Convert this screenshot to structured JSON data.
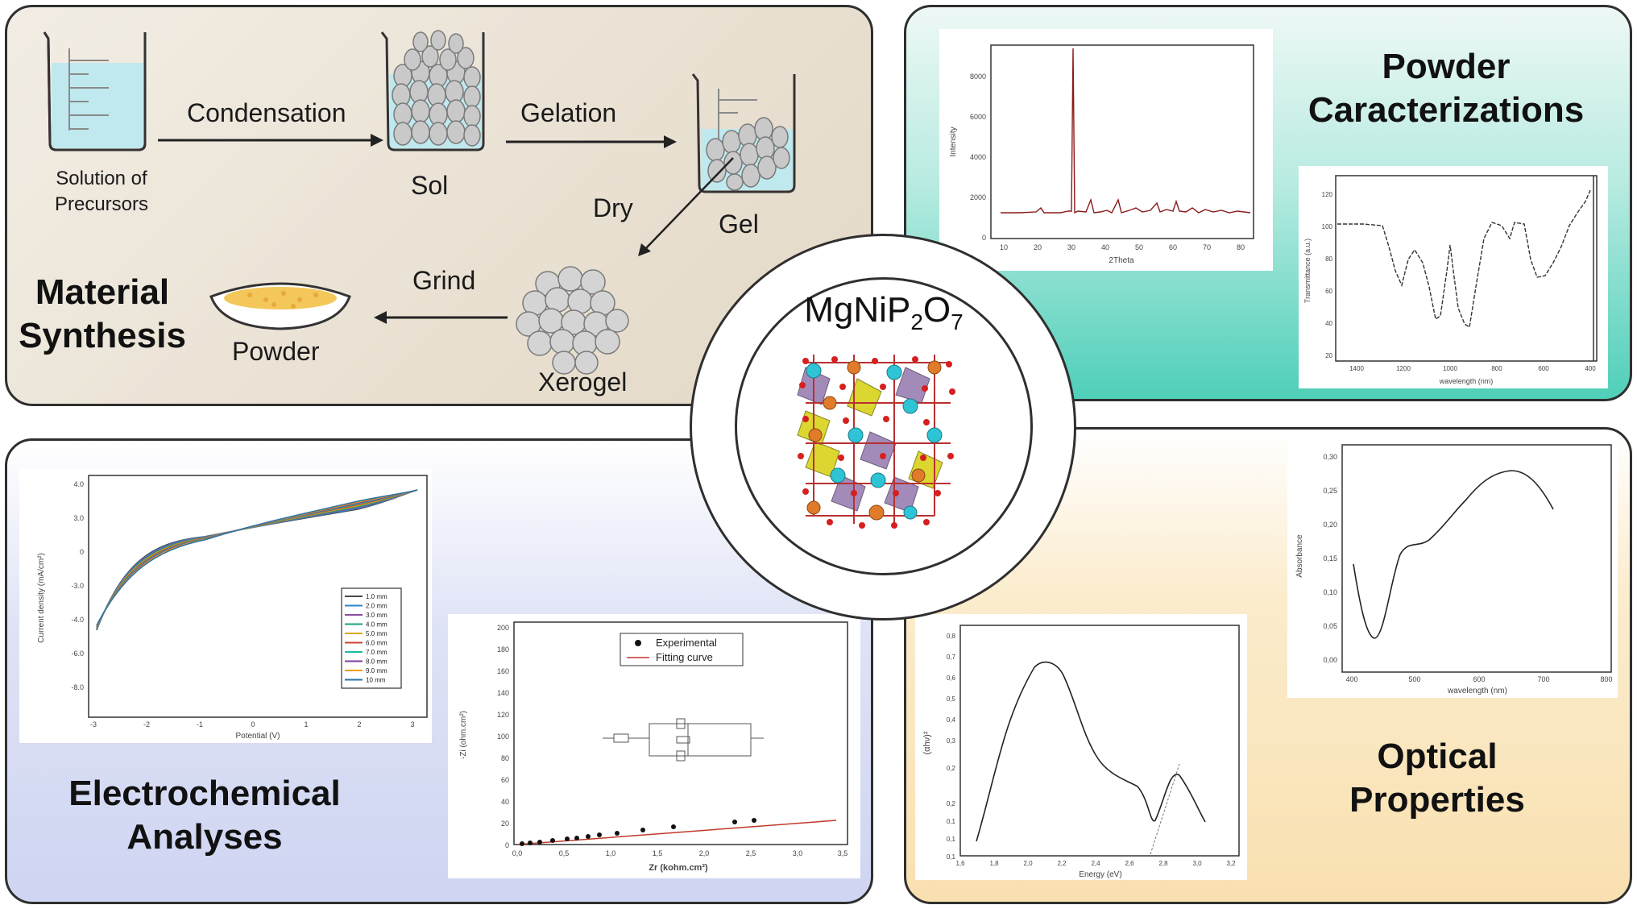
{
  "synthesis": {
    "heading_line1": "Material",
    "heading_line2": "Synthesis",
    "step1": "Condensation",
    "step2": "Gelation",
    "step3": "Dry",
    "step4": "Grind",
    "solution_line1": "Solution of",
    "solution_line2": "Precursors",
    "sol": "Sol",
    "gel": "Gel",
    "xerogel": "Xerogel",
    "powder": "Powder"
  },
  "powder": {
    "heading_line1": "Powder",
    "heading_line2": "Caracterizations",
    "xrd_ylabel": "Intensity",
    "xrd_xlabel": "2Theta",
    "xrd_yticks": [
      "0",
      "2000",
      "4000",
      "6000",
      "8000"
    ],
    "xrd_xticks": [
      "10",
      "20",
      "30",
      "40",
      "50",
      "60",
      "70",
      "80"
    ],
    "ftir_ylabel": "Transmittance (a.u.)",
    "ftir_xlabel": "wavelength (nm)",
    "ftir_xticks": [
      "1400",
      "1200",
      "1000",
      "800",
      "600",
      "400"
    ],
    "ftir_yticks": [
      "20",
      "40",
      "60",
      "80",
      "100",
      "120"
    ]
  },
  "center": {
    "formula_main": "MgNiP",
    "sub1": "2",
    "formula_o": "O",
    "sub2": "7"
  },
  "electro": {
    "heading_line1": "Electrochemical",
    "heading_line2": "Analyses",
    "cv_ylabel": "Current density (mA/cm²)",
    "cv_xlabel": "Potential (V)",
    "cv_yticks": [
      "4.0",
      "3.0",
      "0",
      "-3.0",
      "-4.0",
      "-6.0",
      "-8.0"
    ],
    "cv_xticks": [
      "-3",
      "-2",
      "-1",
      "0",
      "1",
      "2",
      "3"
    ],
    "cv_legend": [
      "1.0 mm",
      "2.0 mm",
      "3.0 mm",
      "4.0 mm",
      "5.0 mm",
      "6.0 mm",
      "7.0 mm",
      "8.0 mm",
      "9.0 mm",
      "10 mm"
    ],
    "eis_ylabel": "-Zi (ohm.cm²)",
    "eis_xlabel": "Zr (kohm.cm²)",
    "eis_yticks": [
      "0",
      "20",
      "40",
      "60",
      "80",
      "100",
      "120",
      "140",
      "160",
      "180",
      "200"
    ],
    "eis_xticks": [
      "0,0",
      "0,5",
      "1,0",
      "1,5",
      "2,0",
      "2,5",
      "3,0",
      "3,5"
    ],
    "eis_legend_exp": "Experimental",
    "eis_legend_fit": "Fitting curve"
  },
  "optical": {
    "heading_line1": "Optical",
    "heading_line2": "Properties",
    "abs_ylabel": "Absorbance",
    "abs_xlabel": "wavelength (nm)",
    "abs_yticks": [
      "0,00",
      "0,05",
      "0,10",
      "0,15",
      "0,20",
      "0,25",
      "0,30"
    ],
    "abs_xticks": [
      "400",
      "500",
      "600",
      "700",
      "800"
    ],
    "tauc_ylabel": "(αhν)²",
    "tauc_xlabel": "Energy (eV)",
    "tauc_yticks": [
      "0,1",
      "0,1",
      "0,1",
      "0,2",
      "0,2",
      "0,3",
      "0,4",
      "0,5",
      "0,6",
      "0,7",
      "0,8"
    ],
    "tauc_xticks": [
      "1,6",
      "1,8",
      "2,0",
      "2,2",
      "2,4",
      "2,6",
      "2,8",
      "3,0",
      "3,2"
    ]
  },
  "colors": {
    "xrd_line": "#8b1a1a",
    "fit_line": "#c0392b",
    "liquid": "#bfe9ee",
    "powder_yellow": "#f3c75a",
    "atom_cyan": "#2ec4d6",
    "atom_orange": "#e07b2a",
    "atom_red": "#d62020",
    "poly_purple": "#9a7fb2",
    "poly_yellow": "#d8d21a"
  }
}
